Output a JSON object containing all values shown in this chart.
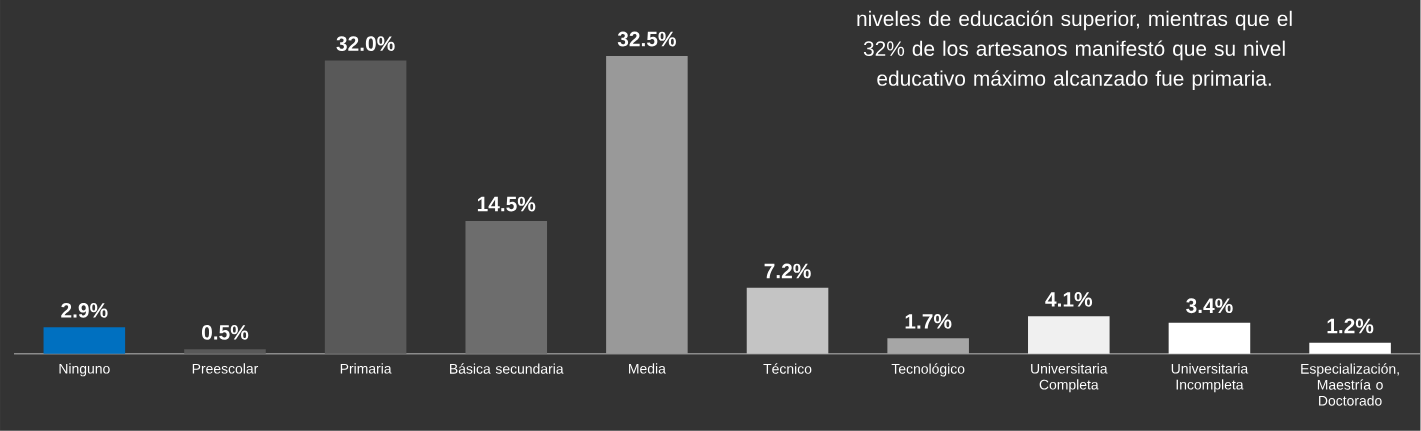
{
  "chart_data": {
    "type": "bar",
    "categories": [
      "Ninguno",
      "Preescolar",
      "Primaria",
      "Básica secundaria",
      "Media",
      "Técnico",
      "Tecnológico",
      "Universitaria Completa",
      "Universitaria Incompleta",
      "Especialización, Maestría o Doctorado"
    ],
    "values": [
      2.9,
      0.5,
      32.0,
      14.5,
      32.5,
      7.2,
      1.7,
      4.1,
      3.4,
      1.2
    ],
    "colors": [
      "#0070c0",
      "#595959",
      "#595959",
      "#6d6d6d",
      "#999999",
      "#c4c4c4",
      "#a6a6a6",
      "#f0f0f0",
      "#ffffff",
      "#ffffff"
    ],
    "value_labels": [
      "2.9%",
      "0.5%",
      "32.0%",
      "14.5%",
      "32.5%",
      "7.2%",
      "1.7%",
      "4.1%",
      "3.4%",
      "1.2%"
    ],
    "annotations": [
      "niveles de educación superior, mientras que el 32% de los artesanos manifestó que su nivel educativo máximo alcanzado fue primaria."
    ]
  }
}
